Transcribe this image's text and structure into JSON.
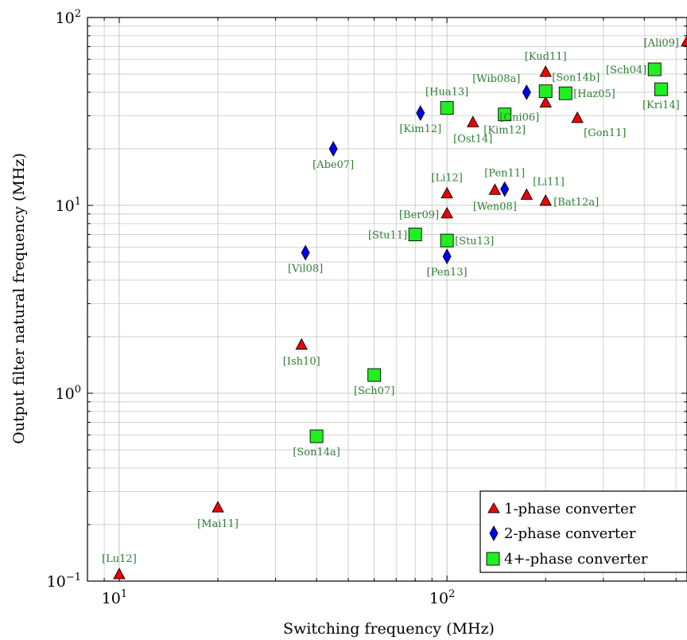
{
  "chart_data": {
    "type": "scatter",
    "xlabel": "Switching frequency (MHz)",
    "ylabel": "Output filter natural frequency (MHz)",
    "xscale": "log",
    "yscale": "log",
    "xlim": [
      8,
      540
    ],
    "ylim": [
      0.1,
      100
    ],
    "grid": true,
    "legend_position": "bottom-right",
    "x_ticks": [
      {
        "value": 10,
        "base": "10",
        "exp": "1"
      },
      {
        "value": 100,
        "base": "10",
        "exp": "2"
      }
    ],
    "y_ticks": [
      {
        "value": 0.1,
        "base": "10",
        "exp": "−1"
      },
      {
        "value": 1,
        "base": "10",
        "exp": "0"
      },
      {
        "value": 10,
        "base": "10",
        "exp": "1"
      },
      {
        "value": 100,
        "base": "10",
        "exp": "2"
      }
    ],
    "colors": {
      "one_phase": "#ee0000",
      "two_phase": "#0000ee",
      "four_phase": "#22ee22",
      "label": "#2e7d32",
      "grid": "#c8c8c8"
    },
    "series": [
      {
        "name": "1-phase converter",
        "marker": "triangle",
        "points": [
          {
            "x": 10,
            "y": 0.108,
            "label": "[Lu12]",
            "pos": "above"
          },
          {
            "x": 20,
            "y": 0.245,
            "label": "[Mai11]",
            "pos": "below"
          },
          {
            "x": 36,
            "y": 1.8,
            "label": "[Ish10]",
            "pos": "below"
          },
          {
            "x": 100,
            "y": 11.5,
            "label": "[Li12]",
            "pos": "above"
          },
          {
            "x": 100,
            "y": 9.0,
            "label": "[Ber09]",
            "pos": "left"
          },
          {
            "x": 120,
            "y": 27.5,
            "label": "[Ost14]",
            "pos": "below"
          },
          {
            "x": 140,
            "y": 12.0,
            "label": "[Wen08]",
            "pos": "below"
          },
          {
            "x": 175,
            "y": 11.3,
            "label": "[Li11]",
            "pos": "aboveright"
          },
          {
            "x": 200,
            "y": 10.5,
            "label": "[Bat12a]",
            "pos": "right"
          },
          {
            "x": 200,
            "y": 51.0,
            "label": "[Kud11]",
            "pos": "above"
          },
          {
            "x": 200,
            "y": 35.0,
            "label": "[Oni06]",
            "pos": "belowleft"
          },
          {
            "x": 250,
            "y": 29.0,
            "label": "[Gon11]",
            "pos": "belowright"
          },
          {
            "x": 540,
            "y": 74.0,
            "label": "[Ali09]",
            "pos": "left"
          }
        ]
      },
      {
        "name": "2-phase converter",
        "marker": "diamond",
        "points": [
          {
            "x": 45,
            "y": 20.0,
            "label": "[Abe07]",
            "pos": "below"
          },
          {
            "x": 37,
            "y": 5.6,
            "label": "[Vil08]",
            "pos": "below"
          },
          {
            "x": 83,
            "y": 31.0,
            "label": "[Kim12]",
            "pos": "below"
          },
          {
            "x": 100,
            "y": 5.35,
            "label": "[Pen13]",
            "pos": "below"
          },
          {
            "x": 150,
            "y": 12.2,
            "label": "[Pen11]",
            "pos": "above"
          },
          {
            "x": 175,
            "y": 40.0,
            "label": "[Wib08a]",
            "pos": "aboveleft"
          }
        ]
      },
      {
        "name": "4+-phase converter",
        "marker": "square",
        "points": [
          {
            "x": 40,
            "y": 0.59,
            "label": "[Son14a]",
            "pos": "below"
          },
          {
            "x": 60,
            "y": 1.25,
            "label": "[Sch07]",
            "pos": "below"
          },
          {
            "x": 80,
            "y": 7.0,
            "label": "[Stu11]",
            "pos": "left"
          },
          {
            "x": 100,
            "y": 6.5,
            "label": "[Stu13]",
            "pos": "right"
          },
          {
            "x": 100,
            "y": 33.0,
            "label": "[Hua13]",
            "pos": "above"
          },
          {
            "x": 150,
            "y": 30.5,
            "label": "[Kim12]",
            "pos": "below"
          },
          {
            "x": 200,
            "y": 40.5,
            "label": "[Son14b]",
            "pos": "aboveright"
          },
          {
            "x": 230,
            "y": 39.5,
            "label": "[Haz05]",
            "pos": "right"
          },
          {
            "x": 430,
            "y": 53.0,
            "label": "[Sch04]",
            "pos": "left"
          },
          {
            "x": 450,
            "y": 41.5,
            "label": "[Kri14]",
            "pos": "below"
          }
        ]
      }
    ]
  }
}
